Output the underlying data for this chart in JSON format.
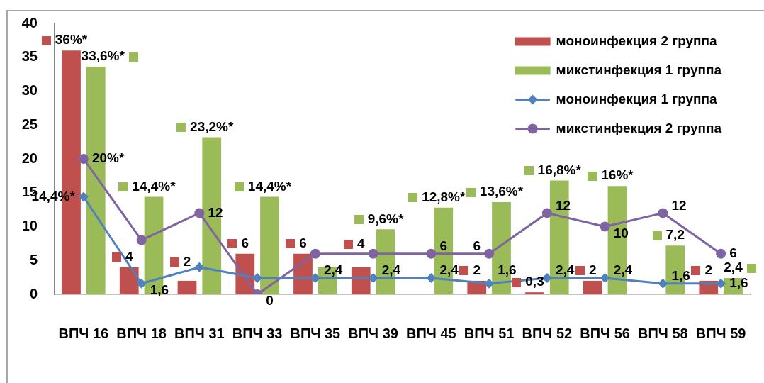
{
  "chart_data": {
    "type": "bar",
    "categories": [
      "ВПЧ 16",
      "ВПЧ 18",
      "ВПЧ 31",
      "ВПЧ 33",
      "ВПЧ 35",
      "ВПЧ 39",
      "ВПЧ 45",
      "ВПЧ 51",
      "ВПЧ 52",
      "ВПЧ 56",
      "ВПЧ 58",
      "ВПЧ 59"
    ],
    "series": [
      {
        "name": "моноинфекция 2 группа",
        "type": "bar",
        "color": "#c0504d",
        "values": [
          36,
          4,
          2,
          6,
          6,
          4,
          null,
          2,
          0.3,
          2,
          null,
          2
        ],
        "value_labels": [
          "36%*",
          "4",
          "2",
          "6",
          "6",
          "4",
          null,
          "2",
          "0,3",
          "2",
          null,
          "2"
        ]
      },
      {
        "name": "микстинфекция 1 группа",
        "color": "#9bbb59",
        "values": [
          33.6,
          14.4,
          23.2,
          14.4,
          4,
          9.6,
          12.8,
          13.6,
          16.8,
          16,
          7.2,
          2.4
        ],
        "value_labels": [
          "33,6%*",
          "14,4%*",
          "23,2%*",
          "14,4%*",
          null,
          "9,6%*",
          "12,8%*",
          "13,6%*",
          "16,8%*",
          "16%*",
          "7,2",
          "2,4"
        ]
      },
      {
        "name": "моноинфекция 1 группа",
        "type": "line",
        "color": "#4f81bd",
        "marker": "diamond",
        "values": [
          14.4,
          1.6,
          4,
          2.4,
          2.4,
          2.4,
          2.4,
          1.6,
          2.4,
          2.4,
          1.6,
          1.6
        ],
        "value_labels": [
          "14,4%*",
          "1,6",
          null,
          null,
          "2,4",
          "2,4",
          "2,4",
          "1,6",
          "2,4",
          "2,4",
          "1,6",
          "1,6"
        ]
      },
      {
        "name": "микстинфекция 2 группа",
        "type": "line",
        "color": "#8064a2",
        "marker": "circle",
        "values": [
          20,
          8,
          12,
          0,
          6,
          6,
          6,
          6,
          12,
          10,
          12,
          6
        ],
        "value_labels": [
          "20%*",
          null,
          "12",
          "0",
          null,
          null,
          "6",
          "6",
          "12",
          "10",
          "12",
          "6"
        ]
      }
    ],
    "ylim": [
      0,
      40
    ],
    "yticks": [
      0,
      5,
      10,
      15,
      20,
      25,
      30,
      35,
      40
    ],
    "legend": "top right"
  }
}
